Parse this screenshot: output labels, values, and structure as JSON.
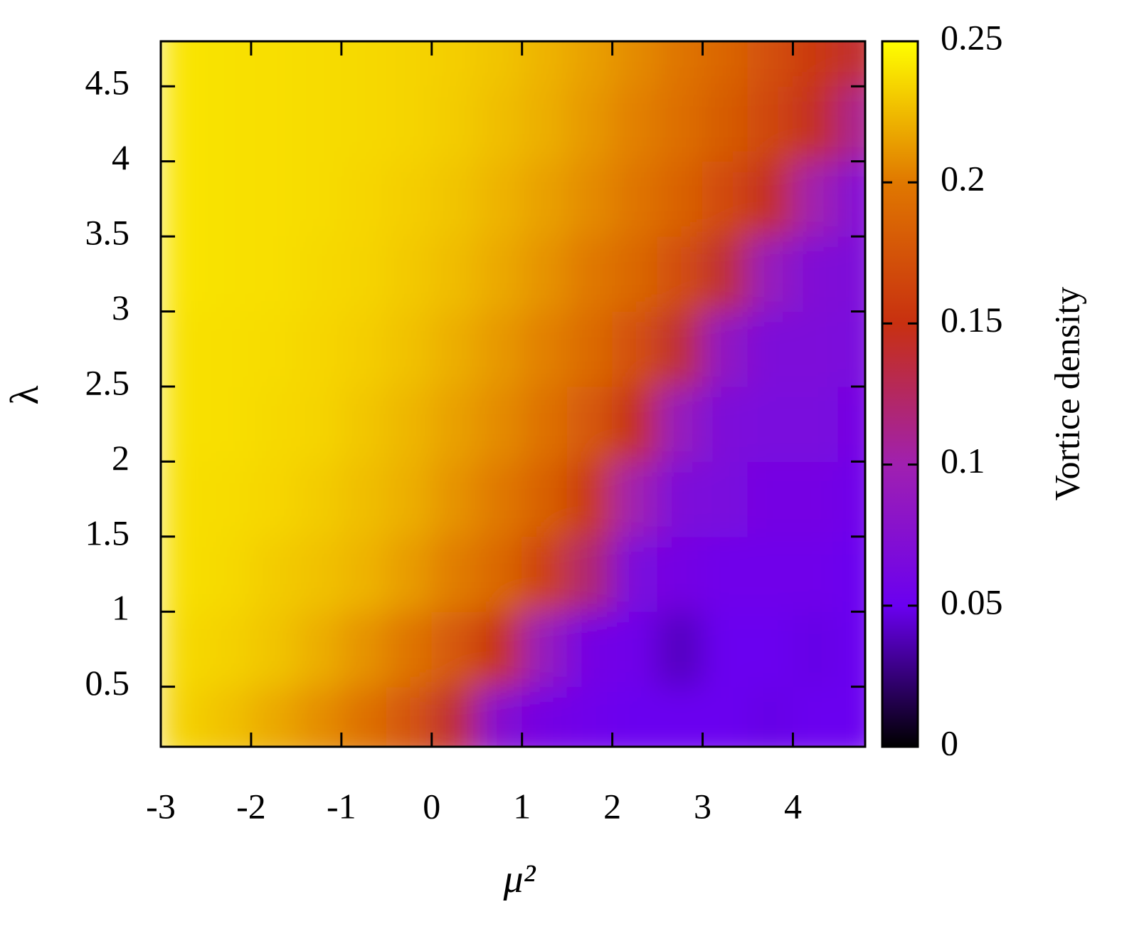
{
  "chart_data": {
    "type": "heatmap",
    "xlabel": "μ²",
    "ylabel": "λ",
    "colorbar_label": "Vortice density",
    "x": [
      -2.75,
      -2.25,
      -1.75,
      -1.25,
      -0.75,
      -0.25,
      0.25,
      0.75,
      1.25,
      1.75,
      2.25,
      2.75,
      3.25,
      3.75,
      4.25,
      4.75
    ],
    "y": [
      0.25,
      0.75,
      1.25,
      1.75,
      2.25,
      2.75,
      3.25,
      3.75,
      4.25,
      4.75
    ],
    "z": [
      [
        0.233,
        0.227,
        0.218,
        0.208,
        0.195,
        0.175,
        0.14,
        0.075,
        0.06,
        0.055,
        0.05,
        0.05,
        0.05,
        0.048,
        0.05,
        0.05
      ],
      [
        0.236,
        0.233,
        0.228,
        0.22,
        0.21,
        0.198,
        0.178,
        0.15,
        0.09,
        0.06,
        0.055,
        0.04,
        0.05,
        0.05,
        0.048,
        0.05
      ],
      [
        0.238,
        0.236,
        0.231,
        0.227,
        0.222,
        0.213,
        0.202,
        0.188,
        0.162,
        0.12,
        0.065,
        0.06,
        0.055,
        0.055,
        0.055,
        0.05
      ],
      [
        0.238,
        0.237,
        0.235,
        0.231,
        0.226,
        0.22,
        0.21,
        0.2,
        0.183,
        0.155,
        0.1,
        0.068,
        0.065,
        0.06,
        0.06,
        0.055
      ],
      [
        0.239,
        0.238,
        0.236,
        0.234,
        0.229,
        0.223,
        0.215,
        0.207,
        0.195,
        0.178,
        0.148,
        0.09,
        0.068,
        0.065,
        0.065,
        0.06
      ],
      [
        0.239,
        0.238,
        0.237,
        0.235,
        0.232,
        0.227,
        0.22,
        0.212,
        0.203,
        0.19,
        0.172,
        0.14,
        0.085,
        0.068,
        0.068,
        0.065
      ],
      [
        0.24,
        0.239,
        0.238,
        0.236,
        0.234,
        0.23,
        0.225,
        0.218,
        0.21,
        0.2,
        0.188,
        0.17,
        0.14,
        0.09,
        0.07,
        0.068
      ],
      [
        0.24,
        0.239,
        0.238,
        0.237,
        0.235,
        0.232,
        0.228,
        0.222,
        0.215,
        0.207,
        0.197,
        0.185,
        0.168,
        0.145,
        0.1,
        0.072
      ],
      [
        0.24,
        0.239,
        0.238,
        0.237,
        0.236,
        0.234,
        0.231,
        0.226,
        0.22,
        0.212,
        0.203,
        0.193,
        0.18,
        0.165,
        0.145,
        0.11
      ],
      [
        0.24,
        0.239,
        0.238,
        0.237,
        0.236,
        0.234,
        0.232,
        0.228,
        0.222,
        0.215,
        0.207,
        0.198,
        0.187,
        0.172,
        0.155,
        0.14
      ]
    ],
    "xlim": [
      -3,
      4.8
    ],
    "ylim": [
      0.1,
      4.8
    ],
    "xticks": [
      -3,
      -2,
      -1,
      0,
      1,
      2,
      3,
      4
    ],
    "yticks": [
      0.5,
      1,
      1.5,
      2,
      2.5,
      3,
      3.5,
      4,
      4.5
    ],
    "zlim": [
      0,
      0.25
    ],
    "zticks": [
      0,
      0.05,
      0.1,
      0.15,
      0.2,
      0.25
    ],
    "colormap": [
      "#000000",
      "#6a00f0",
      "#a020b0",
      "#c83010",
      "#e07800",
      "#ffff00"
    ]
  }
}
